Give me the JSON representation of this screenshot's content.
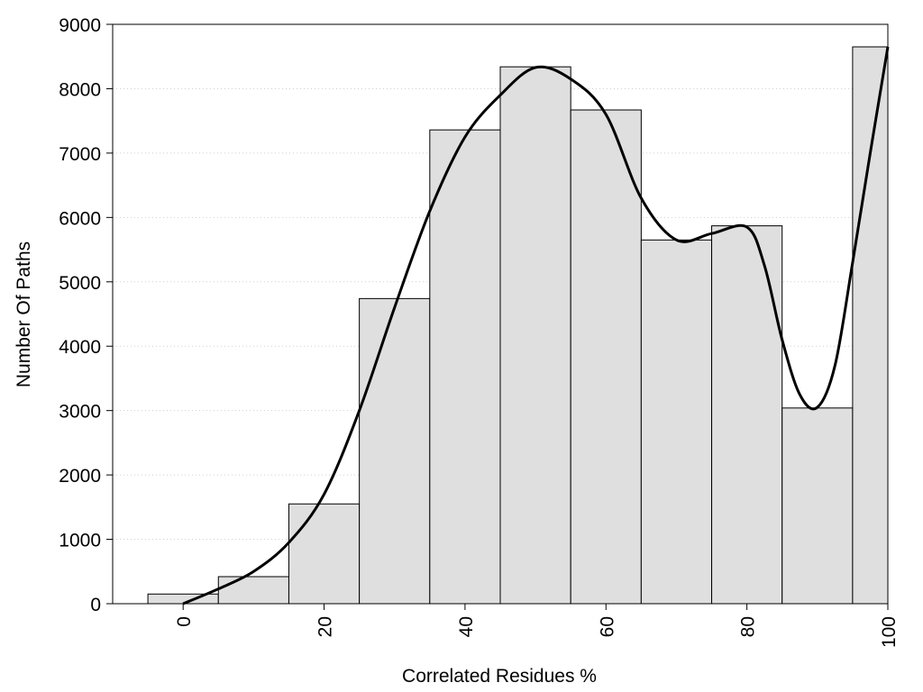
{
  "chart_data": {
    "type": "bar",
    "xlabel": "Correlated Residues %",
    "ylabel": "Number Of Paths",
    "xlim": [
      -10,
      100
    ],
    "ylim": [
      0,
      9000
    ],
    "x_ticks": [
      0,
      20,
      40,
      60,
      80,
      100
    ],
    "y_ticks": [
      0,
      1000,
      2000,
      3000,
      4000,
      5000,
      6000,
      7000,
      8000,
      9000
    ],
    "grid": "horizontal dotted",
    "bars": [
      {
        "center": 0,
        "value": 150
      },
      {
        "center": 10,
        "value": 420
      },
      {
        "center": 20,
        "value": 1550
      },
      {
        "center": 30,
        "value": 4740
      },
      {
        "center": 40,
        "value": 7360
      },
      {
        "center": 50,
        "value": 8340
      },
      {
        "center": 60,
        "value": 7670
      },
      {
        "center": 70,
        "value": 5650
      },
      {
        "center": 80,
        "value": 5870
      },
      {
        "center": 90,
        "value": 3040
      },
      {
        "center": 100,
        "value": 8650
      }
    ],
    "bar_width": 10,
    "curve": {
      "x": [
        0,
        5,
        10,
        15,
        20,
        25,
        30,
        35,
        40,
        45,
        50,
        55,
        60,
        65,
        70,
        75,
        80,
        82.5,
        85,
        87.5,
        90,
        92.5,
        95,
        97.5,
        100
      ],
      "y": [
        0,
        230,
        500,
        950,
        1700,
        3000,
        4600,
        6100,
        7250,
        7900,
        8330,
        8150,
        7600,
        6300,
        5650,
        5750,
        5850,
        5250,
        4100,
        3250,
        3050,
        3700,
        5300,
        7000,
        8650
      ]
    },
    "colors": {
      "bar_fill": "#dfdfdf",
      "bar_stroke": "#000000",
      "curve": "#000000",
      "grid": "#cfcfcf"
    }
  }
}
